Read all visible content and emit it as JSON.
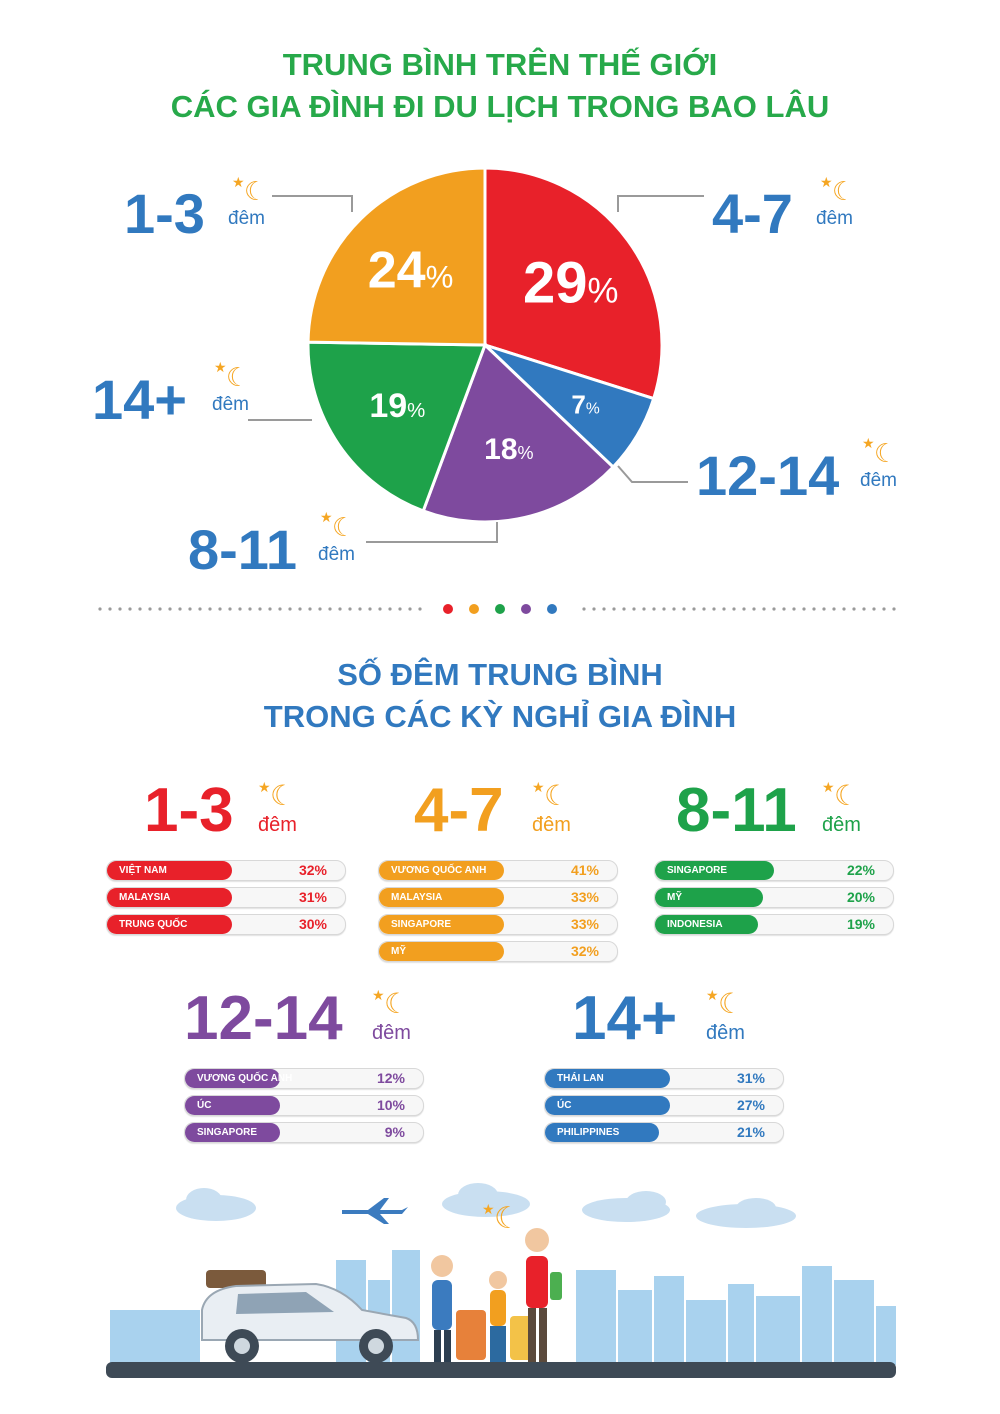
{
  "titles": {
    "pie_line1": "TRUNG BÌNH TRÊN THẾ GIỚI",
    "pie_line2": "CÁC GIA ĐÌNH ĐI DU LỊCH TRONG BAO LÂU",
    "groups_line1": "SỐ ĐÊM TRUNG BÌNH",
    "groups_line2": "TRONG CÁC KỲ NGHỈ GIA ĐÌNH"
  },
  "unit": "đêm",
  "colors": {
    "red": "#e8212a",
    "orange": "#f29f1f",
    "green": "#1ea24a",
    "purple": "#7e4a9e",
    "blue": "#3179bf",
    "moon": "#f5a623"
  },
  "chart_data": [
    {
      "type": "pie",
      "title": "TRUNG BÌNH TRÊN THẾ GIỚI CÁC GIA ĐÌNH ĐI DU LỊCH TRONG BAO LÂU",
      "slices": [
        {
          "label": "4-7",
          "value": 29,
          "display": "29",
          "color": "#e8212a"
        },
        {
          "label": "12-14",
          "value": 7,
          "display": "7",
          "color": "#3179bf"
        },
        {
          "label": "8-11",
          "value": 18,
          "display": "18",
          "color": "#7e4a9e"
        },
        {
          "label": "14+",
          "value": 19,
          "display": "19",
          "color": "#1ea24a"
        },
        {
          "label": "1-3",
          "value": 24,
          "display": "24",
          "color": "#f29f1f"
        }
      ],
      "unit_suffix": "%"
    },
    {
      "type": "bar",
      "title": "SỐ ĐÊM TRUNG BÌNH TRONG CÁC KỲ NGHỈ GIA ĐÌNH",
      "groups": [
        {
          "range": "1-3",
          "color": "#e8212a",
          "items": [
            {
              "name": "VIỆT NAM",
              "value": 32,
              "display": "32%"
            },
            {
              "name": "MALAYSIA",
              "value": 31,
              "display": "31%"
            },
            {
              "name": "TRUNG QUỐC",
              "value": 30,
              "display": "30%"
            }
          ]
        },
        {
          "range": "4-7",
          "color": "#f29f1f",
          "items": [
            {
              "name": "VƯƠNG QUỐC ANH",
              "value": 41,
              "display": "41%"
            },
            {
              "name": "MALAYSIA",
              "value": 33,
              "display": "33%"
            },
            {
              "name": "SINGAPORE",
              "value": 33,
              "display": "33%"
            },
            {
              "name": "MỸ",
              "value": 32,
              "display": "32%"
            }
          ]
        },
        {
          "range": "8-11",
          "color": "#1ea24a",
          "items": [
            {
              "name": "SINGAPORE",
              "value": 22,
              "display": "22%"
            },
            {
              "name": "MỸ",
              "value": 20,
              "display": "20%"
            },
            {
              "name": "INDONESIA",
              "value": 19,
              "display": "19%"
            }
          ]
        },
        {
          "range": "12-14",
          "color": "#7e4a9e",
          "items": [
            {
              "name": "VƯƠNG QUỐC ANH",
              "value": 12,
              "display": "12%"
            },
            {
              "name": "ÚC",
              "value": 10,
              "display": "10%"
            },
            {
              "name": "SINGAPORE",
              "value": 9,
              "display": "9%"
            }
          ]
        },
        {
          "range": "14+",
          "color": "#3179bf",
          "items": [
            {
              "name": "THÁI LAN",
              "value": 31,
              "display": "31%"
            },
            {
              "name": "ÚC",
              "value": 27,
              "display": "27%"
            },
            {
              "name": "PHILIPPINES",
              "value": 21,
              "display": "21%"
            }
          ]
        }
      ]
    }
  ]
}
